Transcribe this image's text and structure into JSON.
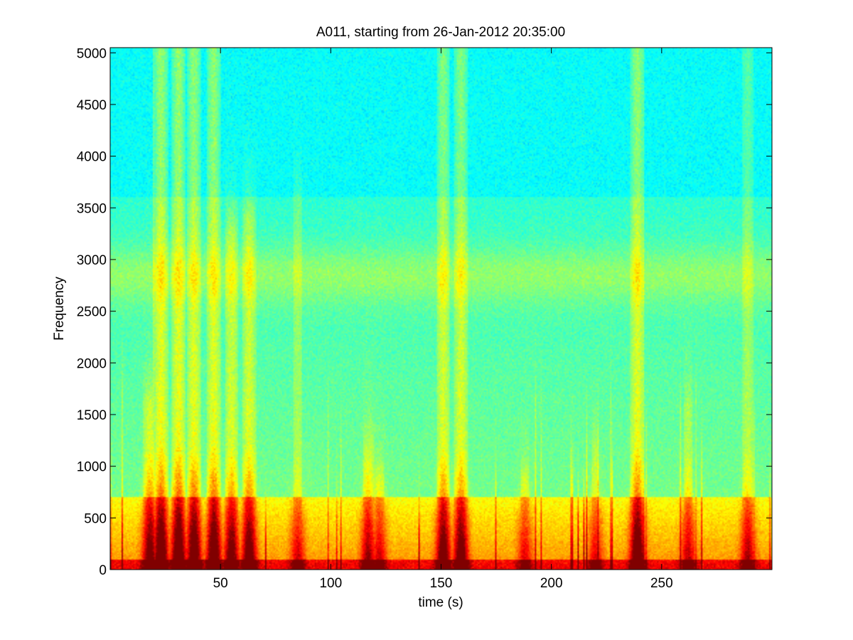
{
  "chart_data": {
    "type": "heatmap",
    "title": "A011, starting from 26-Jan-2012 20:35:00",
    "xlabel": "time (s)",
    "ylabel": "Frequency",
    "xlim": [
      0,
      300
    ],
    "ylim": [
      0,
      5050
    ],
    "x_ticks": [
      50,
      100,
      150,
      200,
      250
    ],
    "y_ticks": [
      0,
      500,
      1000,
      1500,
      2000,
      2500,
      3000,
      3500,
      4000,
      4500,
      5000
    ],
    "colormap": "jet",
    "grid": false,
    "background_level": "cyan (low intensity) at high frequencies, green-yellow band around 2700–3000 Hz, yellow-red below 700 Hz",
    "colors": {
      "low": "#1ee6d2",
      "mid": "#9cf04a",
      "high": "#f0f000",
      "peak": "#d01010"
    },
    "events": [
      {
        "t": 18,
        "max_freq": 1600,
        "strength": 0.8
      },
      {
        "t": 23,
        "max_freq": 5050,
        "strength": 1.0
      },
      {
        "t": 31,
        "max_freq": 5050,
        "strength": 1.0
      },
      {
        "t": 38,
        "max_freq": 5050,
        "strength": 0.95
      },
      {
        "t": 47,
        "max_freq": 5050,
        "strength": 0.95
      },
      {
        "t": 55,
        "max_freq": 3300,
        "strength": 0.8
      },
      {
        "t": 63,
        "max_freq": 3400,
        "strength": 0.85
      },
      {
        "t": 85,
        "max_freq": 3600,
        "strength": 0.45
      },
      {
        "t": 117,
        "max_freq": 1200,
        "strength": 0.6
      },
      {
        "t": 122,
        "max_freq": 900,
        "strength": 0.45
      },
      {
        "t": 151,
        "max_freq": 5050,
        "strength": 0.85
      },
      {
        "t": 159,
        "max_freq": 5050,
        "strength": 0.85
      },
      {
        "t": 188,
        "max_freq": 900,
        "strength": 0.4
      },
      {
        "t": 220,
        "max_freq": 1200,
        "strength": 0.4
      },
      {
        "t": 239,
        "max_freq": 5050,
        "strength": 0.95
      },
      {
        "t": 262,
        "max_freq": 1600,
        "strength": 0.5
      },
      {
        "t": 289,
        "max_freq": 5000,
        "strength": 0.55
      }
    ]
  }
}
